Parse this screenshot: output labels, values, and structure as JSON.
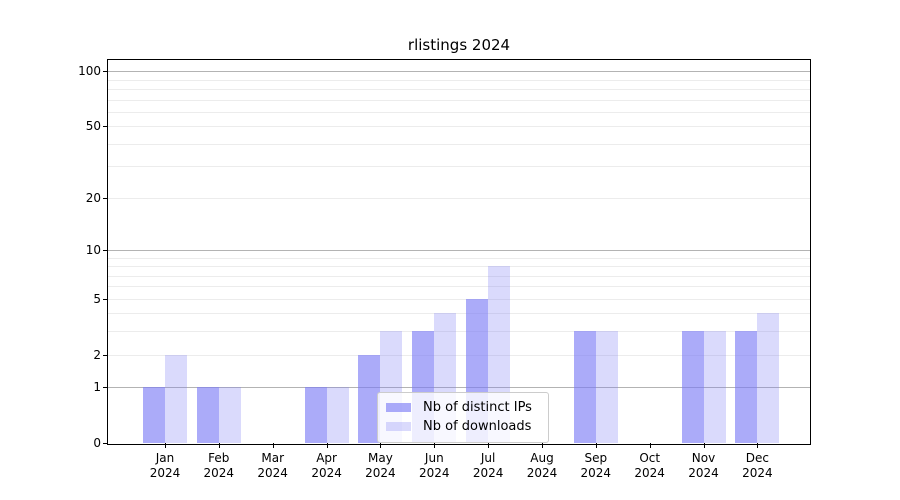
{
  "title": "rlistings 2024",
  "chart_data": {
    "type": "bar",
    "title": "rlistings 2024",
    "categories": [
      "Jan",
      "Feb",
      "Mar",
      "Apr",
      "May",
      "Jun",
      "Jul",
      "Aug",
      "Sep",
      "Oct",
      "Nov",
      "Dec"
    ],
    "year_label": "2024",
    "series": [
      {
        "name": "Nb of distinct IPs",
        "key": "distinct-ips",
        "values": [
          1,
          1,
          0,
          1,
          2,
          3,
          5,
          0,
          3,
          0,
          3,
          3
        ],
        "color": "rgba(122,122,245,0.63)"
      },
      {
        "name": "Nb of downloads",
        "key": "downloads",
        "values": [
          2,
          1,
          0,
          1,
          3,
          4,
          8,
          0,
          3,
          0,
          3,
          4
        ],
        "color": "rgba(122,122,245,0.28)"
      }
    ],
    "y_axis": {
      "scale": "log1p",
      "tick_values": [
        0,
        1,
        2,
        5,
        10,
        20,
        50,
        100
      ],
      "tick_labels": [
        "0",
        "1",
        "2",
        "5",
        "10",
        "20",
        "50",
        "100"
      ],
      "major_gridlines": [
        1,
        10,
        100
      ],
      "minor_gridlines": [
        2,
        3,
        4,
        5,
        6,
        7,
        8,
        9,
        20,
        30,
        40,
        50,
        60,
        70,
        80,
        90
      ],
      "max_value": 115
    },
    "xlabel": "",
    "ylabel": "",
    "legend": {
      "position": "lower center",
      "entries": [
        "Nb of distinct IPs",
        "Nb of downloads"
      ]
    },
    "colors": {
      "bar_base": "#7a7af5",
      "major_grid": "#b3b3b3",
      "minor_grid": "#ececec",
      "spine": "#000000",
      "background": "#ffffff",
      "text": "#000000"
    }
  }
}
